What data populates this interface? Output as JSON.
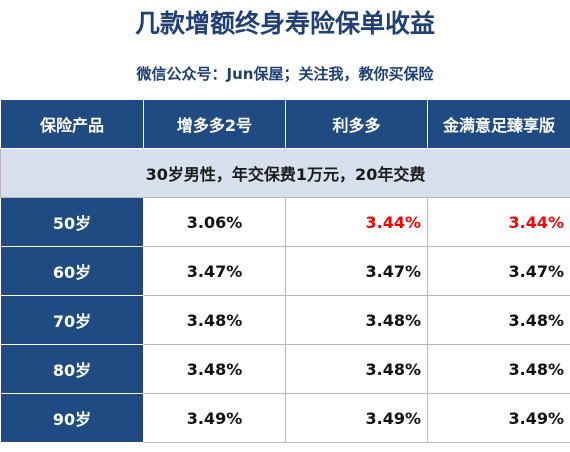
{
  "header": {
    "title": "几款增额终身寿险保单收益",
    "subtitle": "微信公众号：Jun保屋；关注我，教你买保险"
  },
  "table": {
    "columns": [
      "保险产品",
      "增多多2号",
      "利多多",
      "金满意足臻享版"
    ],
    "note": "30岁男性，年交保费1万元，20年交费",
    "rows": [
      [
        "50岁",
        "3.06%",
        "3.44%",
        "3.44%"
      ],
      [
        "60岁",
        "3.47%",
        "3.47%",
        "3.47%"
      ],
      [
        "70岁",
        "3.48%",
        "3.48%",
        "3.48%"
      ],
      [
        "80岁",
        "3.48%",
        "3.48%",
        "3.48%"
      ],
      [
        "90岁",
        "3.49%",
        "3.49%",
        "3.49%"
      ]
    ]
  }
}
